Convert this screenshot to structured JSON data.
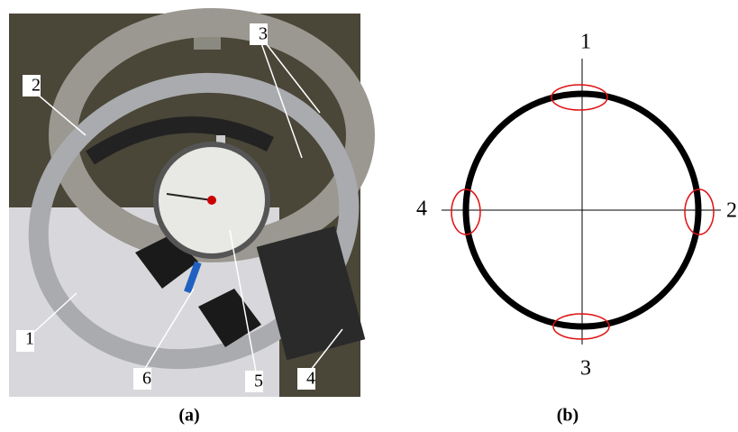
{
  "panel_a": {
    "labels": [
      "1",
      "2",
      "3",
      "4",
      "5",
      "6"
    ],
    "caption": "(a)"
  },
  "panel_b": {
    "labels": [
      "1",
      "2",
      "3",
      "4"
    ],
    "caption": "(b)"
  }
}
